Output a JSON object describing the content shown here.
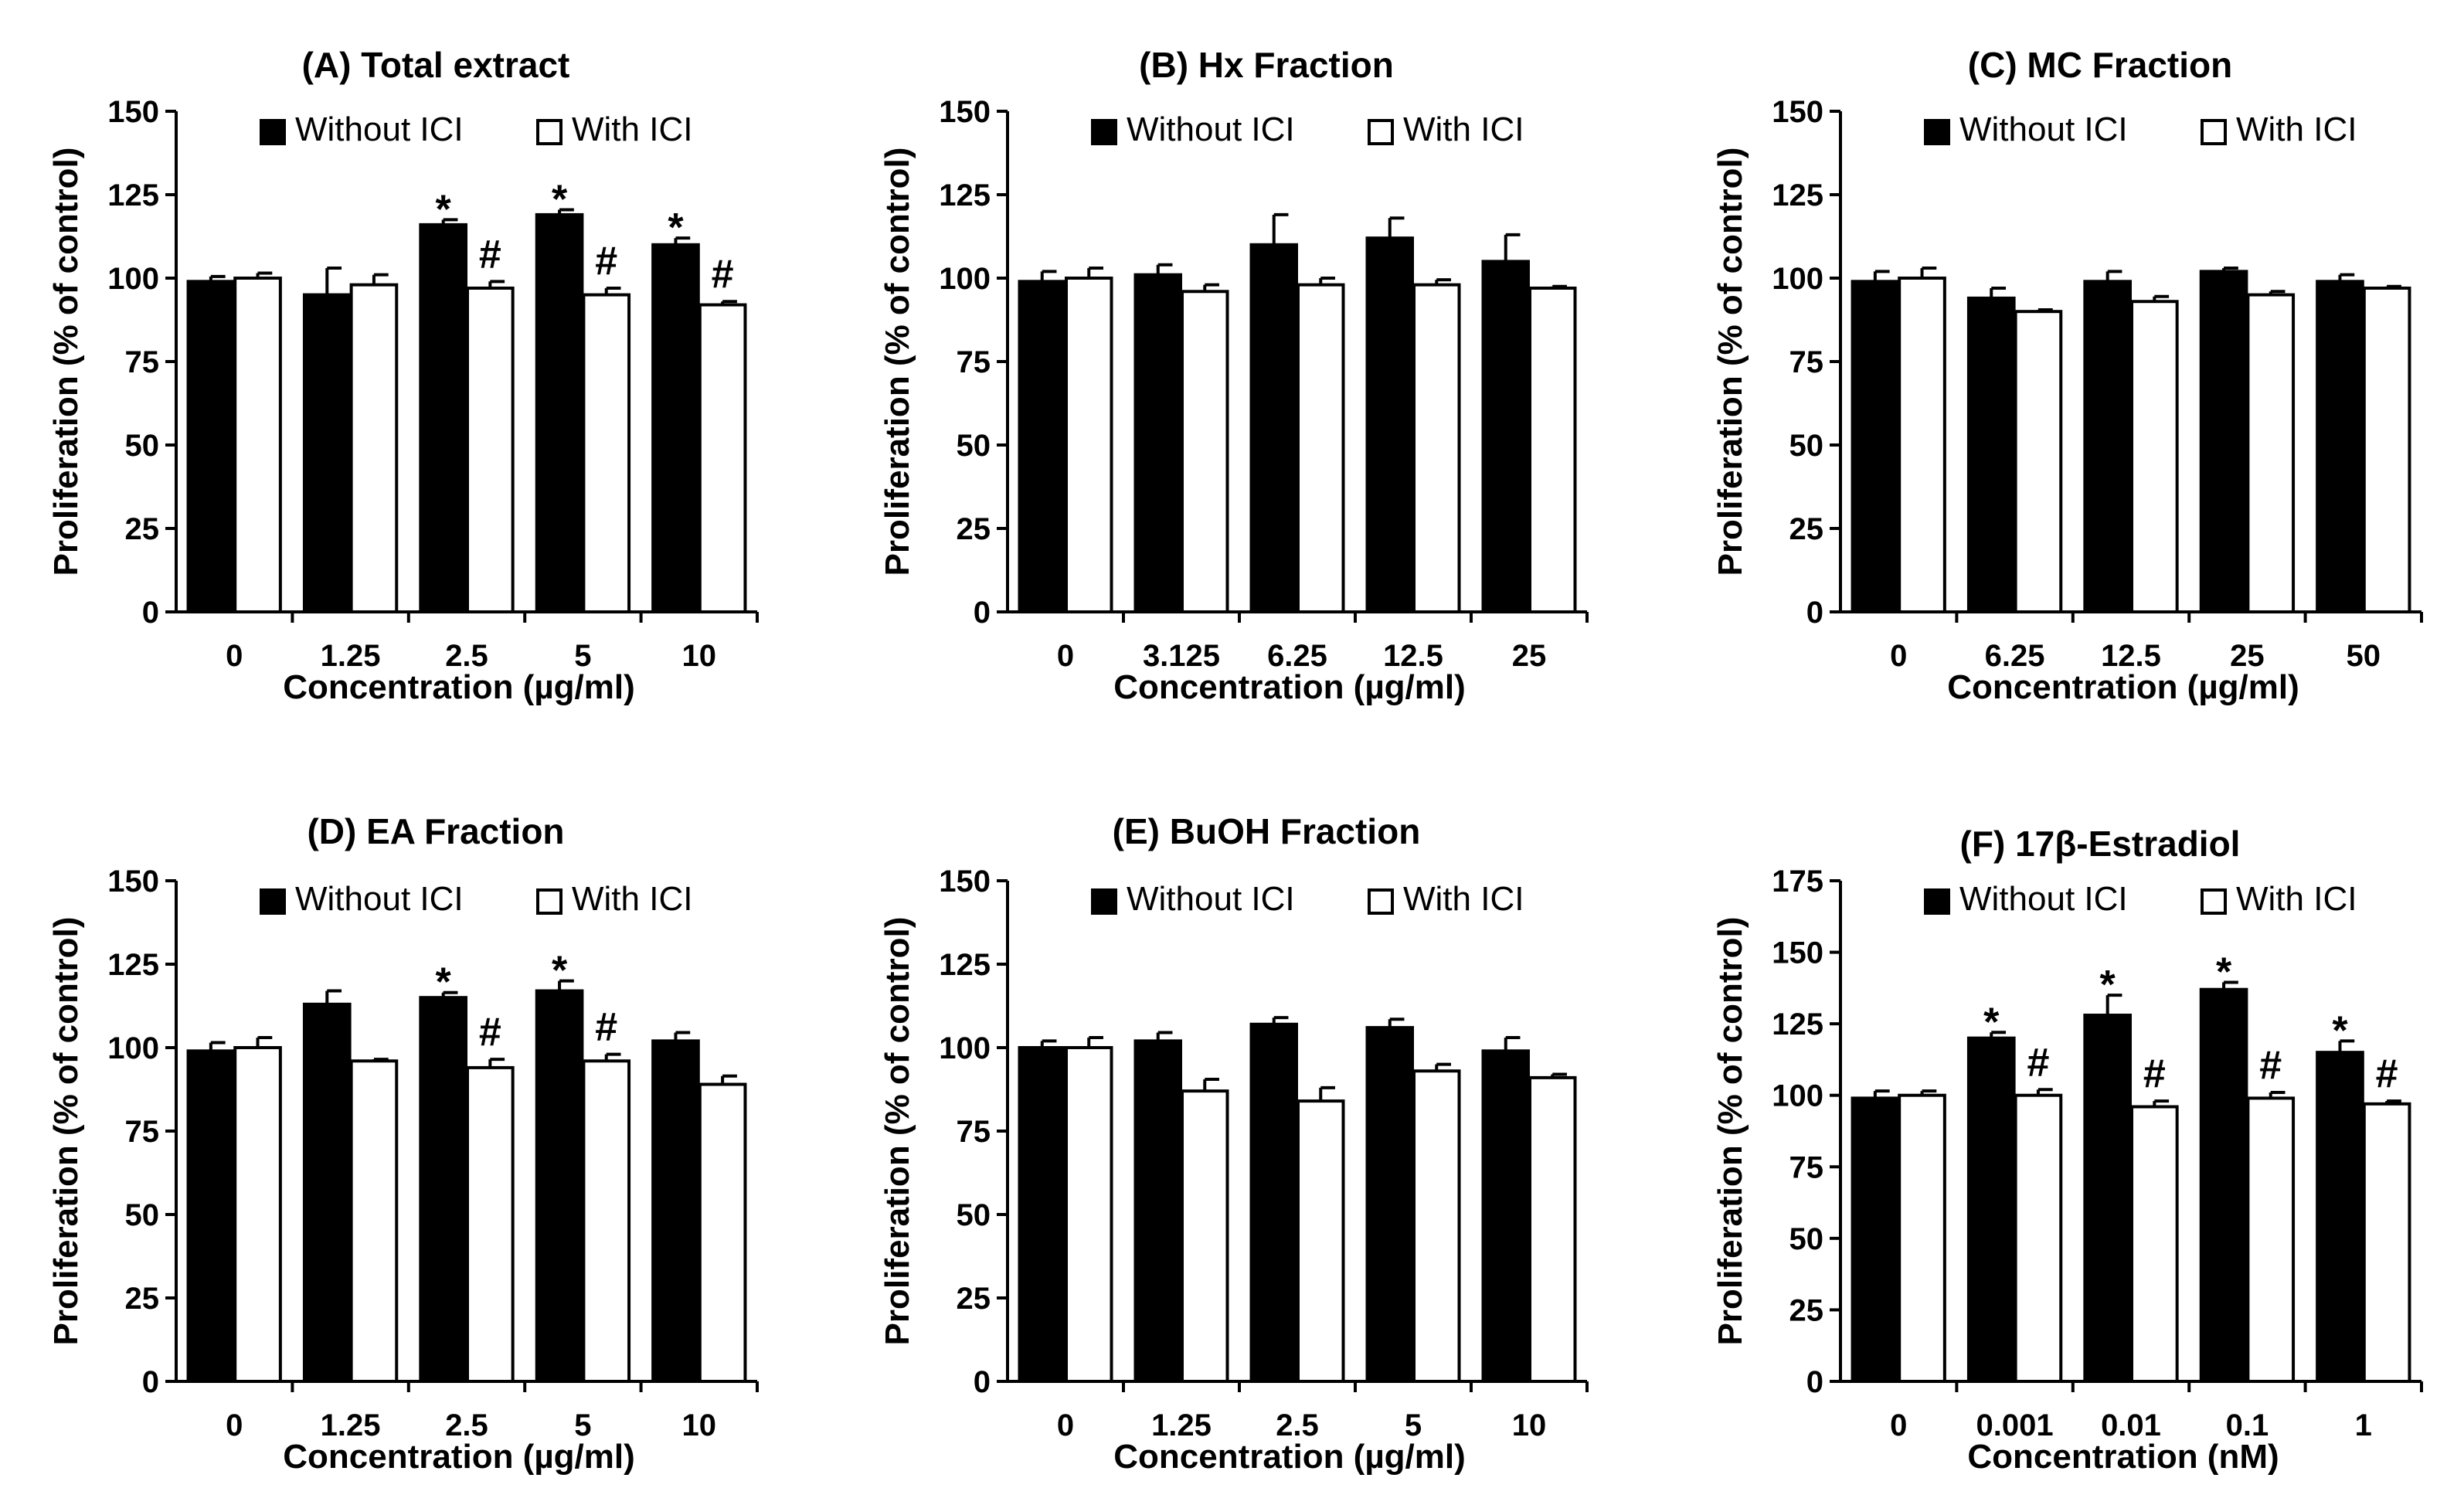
{
  "colors": {
    "without_fill": "#000000",
    "with_fill": "#ffffff",
    "stroke": "#000000"
  },
  "chart_data": [
    {
      "type": "bar",
      "title": "(A) Total extract",
      "xlabel": "Concentration (µg/ml)",
      "ylabel": "Proliferation (% of control)",
      "ylim": [
        0,
        150
      ],
      "yticks": [
        0,
        25,
        50,
        75,
        100,
        125,
        150
      ],
      "categories": [
        "0",
        "1.25",
        "2.5",
        "5",
        "10"
      ],
      "legend": [
        "Without ICI",
        "With ICI"
      ],
      "series": [
        {
          "name": "Without ICI",
          "values": [
            99,
            95,
            116,
            119,
            110
          ],
          "errors": [
            1.5,
            8,
            1.5,
            1.5,
            2
          ],
          "marks": [
            "",
            "",
            "*",
            "*",
            "*"
          ]
        },
        {
          "name": "With ICI",
          "values": [
            100,
            98,
            97,
            95,
            92
          ],
          "errors": [
            1.5,
            3,
            2,
            2,
            1
          ],
          "marks": [
            "",
            "",
            "#",
            "#",
            "#"
          ]
        }
      ]
    },
    {
      "type": "bar",
      "title": "(B) Hx Fraction",
      "xlabel": "Concentration (µg/ml)",
      "ylabel": "Proliferation (% of control)",
      "ylim": [
        0,
        150
      ],
      "yticks": [
        0,
        25,
        50,
        75,
        100,
        125,
        150
      ],
      "categories": [
        "0",
        "3.125",
        "6.25",
        "12.5",
        "25"
      ],
      "legend": [
        "Without ICI",
        "With ICI"
      ],
      "series": [
        {
          "name": "Without ICI",
          "values": [
            99,
            101,
            110,
            112,
            105
          ],
          "errors": [
            3,
            3,
            9,
            6,
            8
          ],
          "marks": [
            "",
            "",
            "",
            "",
            ""
          ]
        },
        {
          "name": "With ICI",
          "values": [
            100,
            96,
            98,
            98,
            97
          ],
          "errors": [
            3,
            2,
            2,
            1.5,
            0.5
          ],
          "marks": [
            "",
            "",
            "",
            "",
            ""
          ]
        }
      ]
    },
    {
      "type": "bar",
      "title": "(C) MC Fraction",
      "xlabel": "Concentration (µg/ml)",
      "ylabel": "Proliferation (% of control)",
      "ylim": [
        0,
        150
      ],
      "yticks": [
        0,
        25,
        50,
        75,
        100,
        125,
        150
      ],
      "categories": [
        "0",
        "6.25",
        "12.5",
        "25",
        "50"
      ],
      "legend": [
        "Without ICI",
        "With ICI"
      ],
      "series": [
        {
          "name": "Without ICI",
          "values": [
            99,
            94,
            99,
            102,
            99
          ],
          "errors": [
            3,
            3,
            3,
            1,
            2
          ],
          "marks": [
            "",
            "",
            "",
            "",
            ""
          ]
        },
        {
          "name": "With ICI",
          "values": [
            100,
            90,
            93,
            95,
            97
          ],
          "errors": [
            3,
            0.5,
            1.5,
            1,
            0.5
          ],
          "marks": [
            "",
            "",
            "",
            "",
            ""
          ]
        }
      ]
    },
    {
      "type": "bar",
      "title": "(D) EA Fraction",
      "xlabel": "Concentration (µg/ml)",
      "ylabel": "Proliferation (% of control)",
      "ylim": [
        0,
        150
      ],
      "yticks": [
        0,
        25,
        50,
        75,
        100,
        125,
        150
      ],
      "categories": [
        "0",
        "1.25",
        "2.5",
        "5",
        "10"
      ],
      "legend": [
        "Without ICI",
        "With ICI"
      ],
      "series": [
        {
          "name": "Without ICI",
          "values": [
            99,
            113,
            115,
            117,
            102
          ],
          "errors": [
            2.5,
            4,
            1.5,
            3,
            2.5
          ],
          "marks": [
            "",
            "",
            "*",
            "*",
            ""
          ]
        },
        {
          "name": "With ICI",
          "values": [
            100,
            96,
            94,
            96,
            89
          ],
          "errors": [
            3,
            0.5,
            2.5,
            2,
            2.5
          ],
          "marks": [
            "",
            "",
            "#",
            "#",
            ""
          ]
        }
      ]
    },
    {
      "type": "bar",
      "title": "(E) BuOH Fraction",
      "xlabel": "Concentration (µg/ml)",
      "ylabel": "Proliferation (% of control)",
      "ylim": [
        0,
        150
      ],
      "yticks": [
        0,
        25,
        50,
        75,
        100,
        125,
        150
      ],
      "categories": [
        "0",
        "1.25",
        "2.5",
        "5",
        "10"
      ],
      "legend": [
        "Without ICI",
        "With ICI"
      ],
      "series": [
        {
          "name": "Without ICI",
          "values": [
            100,
            102,
            107,
            106,
            99
          ],
          "errors": [
            2,
            2.5,
            2,
            2.5,
            4
          ],
          "marks": [
            "",
            "",
            "",
            "",
            ""
          ]
        },
        {
          "name": "With ICI",
          "values": [
            100,
            87,
            84,
            93,
            91
          ],
          "errors": [
            3,
            3.5,
            4,
            2,
            1
          ],
          "marks": [
            "",
            "",
            "",
            "",
            ""
          ]
        }
      ]
    },
    {
      "type": "bar",
      "title": "(F) 17β-Estradiol",
      "xlabel": "Concentration (nM)",
      "ylabel": "Proliferation (% of control)",
      "ylim": [
        0,
        175
      ],
      "yticks": [
        0,
        25,
        50,
        75,
        100,
        125,
        150,
        175
      ],
      "categories": [
        "0",
        "0.001",
        "0.01",
        "0.1",
        "1"
      ],
      "legend": [
        "Without ICI",
        "With ICI"
      ],
      "series": [
        {
          "name": "Without ICI",
          "values": [
            99,
            120,
            128,
            137,
            115
          ],
          "errors": [
            2.5,
            2,
            7,
            2.5,
            4
          ],
          "marks": [
            "",
            "*",
            "*",
            "*",
            "*"
          ]
        },
        {
          "name": "With ICI",
          "values": [
            100,
            100,
            96,
            99,
            97
          ],
          "errors": [
            1.5,
            2,
            2,
            2,
            1
          ],
          "marks": [
            "",
            "#",
            "#",
            "#",
            "#"
          ]
        }
      ]
    }
  ]
}
